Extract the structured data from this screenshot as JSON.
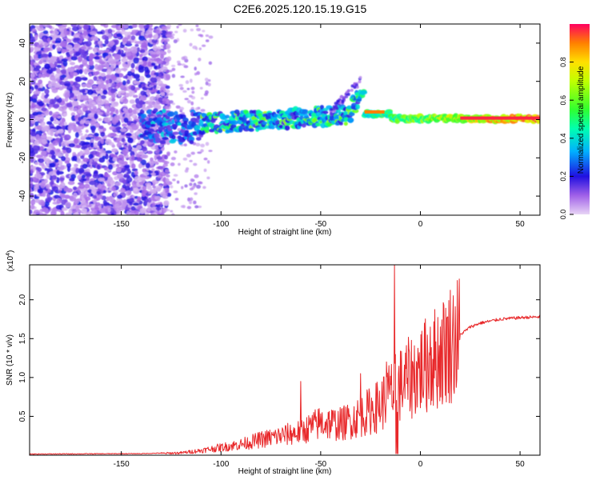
{
  "title": "C2E6.2025.120.15.19.G15",
  "chart_data": [
    {
      "type": "heatmap",
      "xlabel": "Height of straight line (km)",
      "ylabel": "Frequency (Hz)",
      "xlim": [
        -196,
        60
      ],
      "ylim": [
        -50,
        50
      ],
      "x_ticks": [
        -150,
        -100,
        -50,
        0,
        50
      ],
      "y_ticks": [
        -40,
        -20,
        0,
        20,
        40
      ],
      "colorbar": {
        "label": "Normalized spectral amplitude",
        "range": [
          0,
          1
        ],
        "ticks": [
          0.0,
          0.2,
          0.4,
          0.6,
          0.8
        ]
      },
      "features": [
        {
          "desc": "noisy speckle",
          "x": [
            -196,
            -130
          ],
          "f": [
            -50,
            50
          ],
          "amp": 0.2
        },
        {
          "desc": "carrier band",
          "x": [
            -130,
            60
          ],
          "f_center": [
            0,
            2
          ],
          "amp_end": 0.95
        }
      ]
    },
    {
      "type": "line",
      "xlabel": "Height of straight line (km)",
      "ylabel": "SNR (10 * v/v)",
      "yscale_label": "(x10",
      "yscale_exp": "4",
      "xlim": [
        -196,
        60
      ],
      "ylim": [
        0,
        2.45
      ],
      "x_ticks": [
        -150,
        -100,
        -50,
        0,
        50
      ],
      "y_ticks": [
        0.5,
        1.0,
        1.5,
        2.0
      ],
      "series_color": "#e8282a",
      "envelope": {
        "x": [
          -196,
          -140,
          -120,
          -110,
          -100,
          -90,
          -80,
          -70,
          -60,
          -50,
          -40,
          -30,
          -20,
          -15,
          -10,
          -5,
          0,
          5,
          10,
          15,
          20,
          25,
          30,
          40,
          50,
          60
        ],
        "y": [
          0.01,
          0.015,
          0.03,
          0.06,
          0.1,
          0.14,
          0.2,
          0.25,
          0.3,
          0.42,
          0.4,
          0.5,
          0.65,
          0.8,
          0.9,
          1.0,
          1.1,
          1.2,
          1.3,
          1.45,
          1.55,
          1.65,
          1.7,
          1.75,
          1.77,
          1.78
        ]
      },
      "spikes": [
        {
          "x": -13,
          "y": 2.45
        },
        {
          "x": -60,
          "y": 0.95
        },
        {
          "x": -30,
          "y": 1.05
        },
        {
          "x": -17,
          "y": 1.2
        },
        {
          "x": 5,
          "y": 1.65
        },
        {
          "x": 12,
          "y": 1.5
        }
      ]
    }
  ]
}
